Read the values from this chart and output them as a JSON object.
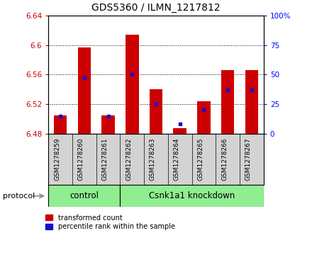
{
  "title": "GDS5360 / ILMN_1217812",
  "samples": [
    "GSM1278259",
    "GSM1278260",
    "GSM1278261",
    "GSM1278262",
    "GSM1278263",
    "GSM1278264",
    "GSM1278265",
    "GSM1278266",
    "GSM1278267"
  ],
  "red_values": [
    6.505,
    6.597,
    6.505,
    6.614,
    6.54,
    6.487,
    6.524,
    6.566,
    6.566
  ],
  "blue_values_pct": [
    15,
    47,
    15,
    50,
    25,
    8,
    20,
    37,
    37
  ],
  "ylim": [
    6.48,
    6.64
  ],
  "y2lim": [
    0,
    100
  ],
  "yticks": [
    6.48,
    6.52,
    6.56,
    6.6,
    6.64
  ],
  "y2ticks": [
    0,
    25,
    50,
    75,
    100
  ],
  "red_color": "#cc0000",
  "blue_color": "#1111cc",
  "bar_bottom": 6.48,
  "n_control": 3,
  "control_label": "control",
  "knockdown_label": "Csnk1a1 knockdown",
  "protocol_label": "protocol",
  "legend_red": "transformed count",
  "legend_blue": "percentile rank within the sample",
  "group_bg_color": "#90ee90",
  "tick_area_bg": "#d3d3d3",
  "plot_bg": "#ffffff",
  "title_fontsize": 10,
  "tick_fontsize": 7.5,
  "sample_fontsize": 6.5,
  "group_fontsize": 8.5,
  "legend_fontsize": 7,
  "protocol_fontsize": 8
}
